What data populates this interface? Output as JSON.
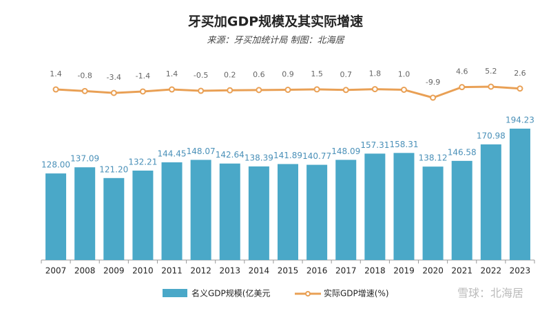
{
  "chart_data": {
    "type": "bar-line",
    "title": "牙买加GDP规模及其实际增速",
    "subtitle": "来源：牙买加统计局 制图：北海居",
    "watermark": "雪球：北海居",
    "categories": [
      "2007",
      "2008",
      "2009",
      "2010",
      "2011",
      "2012",
      "2013",
      "2014",
      "2015",
      "2016",
      "2017",
      "2018",
      "2019",
      "2020",
      "2021",
      "2022",
      "2023"
    ],
    "series": [
      {
        "name": "名义GDP规模(亿美元",
        "color": "#4aa8c8",
        "type": "bar",
        "values": [
          128.0,
          137.09,
          121.2,
          132.21,
          144.45,
          148.07,
          142.64,
          138.39,
          141.89,
          140.77,
          148.09,
          157.31,
          158.31,
          138.12,
          146.58,
          170.98,
          194.23
        ],
        "value_labels": [
          "128.00",
          "137.09",
          "121.20",
          "132.21",
          "144.45",
          "148.07",
          "142.64",
          "138.39",
          "141.89",
          "140.77",
          "148.09",
          "157.31",
          "158.31",
          "138.12",
          "146.58",
          "170.98",
          "194.23"
        ]
      },
      {
        "name": "实际GDP增速(%)",
        "color": "#e9a055",
        "type": "line",
        "values": [
          1.4,
          -0.8,
          -3.4,
          -1.4,
          1.4,
          -0.5,
          0.2,
          0.6,
          0.9,
          1.5,
          0.7,
          1.8,
          1.0,
          -9.9,
          4.6,
          5.2,
          2.6
        ],
        "value_labels": [
          "1.4",
          "-0.8",
          "-3.4",
          "-1.4",
          "1.4",
          "-0.5",
          "0.2",
          "0.6",
          "0.9",
          "1.5",
          "0.7",
          "1.8",
          "1.0",
          "-9.9",
          "4.6",
          "5.2",
          "2.6"
        ]
      }
    ]
  }
}
